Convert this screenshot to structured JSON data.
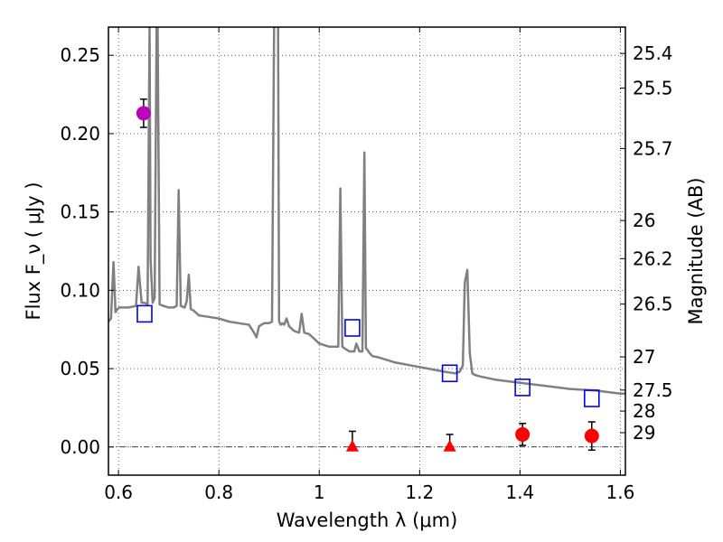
{
  "chart_data": {
    "type": "line",
    "xlabel": "Wavelength  λ (μm)",
    "ylabel": "Flux  F_ν  ( μJy )",
    "y2label": "Magnitude (AB)",
    "xlim": [
      0.58,
      1.61
    ],
    "ylim": [
      -0.018,
      0.268
    ],
    "grid": true,
    "x_ticks": [
      {
        "v": 0.6,
        "label": "0.6"
      },
      {
        "v": 0.8,
        "label": "0.8"
      },
      {
        "v": 1.0,
        "label": "1"
      },
      {
        "v": 1.2,
        "label": "1.2"
      },
      {
        "v": 1.4,
        "label": "1.4"
      },
      {
        "v": 1.6,
        "label": "1.6"
      }
    ],
    "y_ticks": [
      {
        "v": 0.0,
        "label": "0.00"
      },
      {
        "v": 0.05,
        "label": "0.05"
      },
      {
        "v": 0.1,
        "label": "0.10"
      },
      {
        "v": 0.15,
        "label": "0.15"
      },
      {
        "v": 0.2,
        "label": "0.20"
      },
      {
        "v": 0.25,
        "label": "0.25"
      }
    ],
    "mag_ticks": [
      {
        "label": "25.4",
        "flux": 0.2512
      },
      {
        "label": "25.5",
        "flux": 0.2291
      },
      {
        "label": "25.7",
        "flux": 0.1905
      },
      {
        "label": "26",
        "flux": 0.1445
      },
      {
        "label": "26.2",
        "flux": 0.1202
      },
      {
        "label": "26.5",
        "flux": 0.0912
      },
      {
        "label": "27",
        "flux": 0.0575
      },
      {
        "label": "27.5",
        "flux": 0.0363
      },
      {
        "label": "28",
        "flux": 0.0229
      },
      {
        "label": "29",
        "flux": 0.0091
      }
    ],
    "series": [
      {
        "kind": "line",
        "color": "#808080",
        "x": [
          0.58,
          0.585,
          0.59,
          0.594,
          0.598,
          0.602,
          0.62,
          0.635,
          0.64,
          0.646,
          0.652,
          0.658,
          0.662,
          0.664,
          0.668,
          0.672,
          0.676,
          0.678,
          0.682,
          0.69,
          0.7,
          0.71,
          0.716,
          0.72,
          0.724,
          0.732,
          0.736,
          0.74,
          0.744,
          0.75,
          0.76,
          0.78,
          0.8,
          0.82,
          0.84,
          0.86,
          0.87,
          0.875,
          0.88,
          0.89,
          0.9,
          0.906,
          0.91,
          0.913,
          0.916,
          0.918,
          0.92,
          0.923,
          0.926,
          0.93,
          0.935,
          0.94,
          0.95,
          0.96,
          0.965,
          0.97,
          0.98,
          0.99,
          1.0,
          1.01,
          1.02,
          1.03,
          1.038,
          1.042,
          1.046,
          1.05,
          1.06,
          1.07,
          1.074,
          1.08,
          1.086,
          1.09,
          1.093,
          1.096,
          1.1,
          1.106,
          1.12,
          1.15,
          1.2,
          1.25,
          1.27,
          1.28,
          1.286,
          1.29,
          1.295,
          1.3,
          1.305,
          1.31,
          1.32,
          1.35,
          1.4,
          1.45,
          1.5,
          1.55,
          1.6,
          1.61
        ],
        "y": [
          0.08,
          0.082,
          0.118,
          0.086,
          0.088,
          0.089,
          0.089,
          0.09,
          0.115,
          0.092,
          0.092,
          0.091,
          0.27,
          0.12,
          0.092,
          0.095,
          0.27,
          0.27,
          0.091,
          0.09,
          0.089,
          0.089,
          0.09,
          0.164,
          0.09,
          0.089,
          0.093,
          0.11,
          0.088,
          0.087,
          0.084,
          0.083,
          0.082,
          0.08,
          0.079,
          0.078,
          0.073,
          0.07,
          0.077,
          0.079,
          0.079,
          0.08,
          0.27,
          0.27,
          0.27,
          0.27,
          0.08,
          0.078,
          0.079,
          0.078,
          0.082,
          0.077,
          0.074,
          0.073,
          0.085,
          0.073,
          0.072,
          0.069,
          0.066,
          0.065,
          0.064,
          0.064,
          0.064,
          0.165,
          0.064,
          0.063,
          0.061,
          0.061,
          0.066,
          0.061,
          0.061,
          0.188,
          0.063,
          0.062,
          0.06,
          0.058,
          0.057,
          0.054,
          0.051,
          0.048,
          0.047,
          0.048,
          0.052,
          0.105,
          0.113,
          0.06,
          0.047,
          0.046,
          0.045,
          0.043,
          0.041,
          0.039,
          0.037,
          0.036,
          0.034,
          0.034
        ]
      },
      {
        "kind": "squares",
        "color": "#0000ff",
        "x": [
          0.652,
          1.066,
          1.26,
          1.405,
          1.543
        ],
        "y": [
          0.085,
          0.076,
          0.047,
          0.038,
          0.031
        ]
      },
      {
        "kind": "points",
        "color": "#ff0000",
        "x": [
          1.405,
          1.543
        ],
        "y": [
          0.008,
          0.007
        ],
        "yerr": [
          0.007,
          0.009
        ]
      },
      {
        "kind": "triangles",
        "color": "#ff0000",
        "x": [
          1.066,
          1.26
        ],
        "y": [
          0.0,
          0.0
        ],
        "yerr_upper": [
          0.01,
          0.008
        ]
      },
      {
        "kind": "points",
        "color": "#bb00bb",
        "x": [
          0.65
        ],
        "y": [
          0.213
        ],
        "yerr": [
          0.009
        ]
      }
    ],
    "zero_line": 0.0
  }
}
